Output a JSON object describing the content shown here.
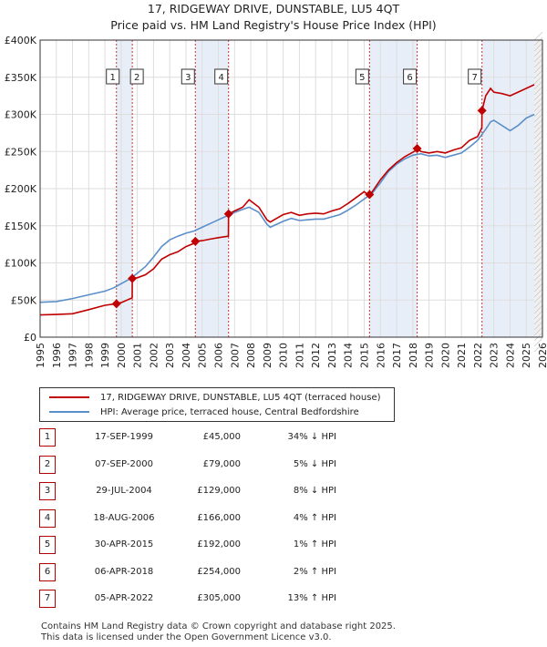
{
  "title": "17, RIDGEWAY DRIVE, DUNSTABLE, LU5 4QT",
  "subtitle": "Price paid vs. HM Land Registry's House Price Index (HPI)",
  "legend": {
    "property": "17, RIDGEWAY DRIVE, DUNSTABLE, LU5 4QT (terraced house)",
    "hpi": "HPI: Average price, terraced house, Central Bedfordshire"
  },
  "colors": {
    "property": "#c00000",
    "hpi": "#5b8fc9",
    "shade": "#e8eef8",
    "grid": "#dddddd",
    "marker_border": "#b00000"
  },
  "footer": {
    "line1": "Contains HM Land Registry data © Crown copyright and database right 2025.",
    "line2": "This data is licensed under the Open Government Licence v3.0."
  },
  "sales": [
    {
      "num": "1",
      "date": "17-SEP-1999",
      "price": "£45,000",
      "hpi": "34% ↓ HPI"
    },
    {
      "num": "2",
      "date": "07-SEP-2000",
      "price": "£79,000",
      "hpi": "5% ↓ HPI"
    },
    {
      "num": "3",
      "date": "29-JUL-2004",
      "price": "£129,000",
      "hpi": "8% ↓ HPI"
    },
    {
      "num": "4",
      "date": "18-AUG-2006",
      "price": "£166,000",
      "hpi": "4% ↑ HPI"
    },
    {
      "num": "5",
      "date": "30-APR-2015",
      "price": "£192,000",
      "hpi": "1% ↑ HPI"
    },
    {
      "num": "6",
      "date": "06-APR-2018",
      "price": "£254,000",
      "hpi": "2% ↑ HPI"
    },
    {
      "num": "7",
      "date": "05-APR-2022",
      "price": "£305,000",
      "hpi": "13% ↑ HPI"
    }
  ],
  "chart_data": {
    "type": "line",
    "title": "17, RIDGEWAY DRIVE, DUNSTABLE, LU5 4QT",
    "subtitle": "Price paid vs. HM Land Registry's House Price Index (HPI)",
    "xlim": [
      1995,
      2026
    ],
    "ylim": [
      0,
      400000
    ],
    "x_ticks": [
      1995,
      1996,
      1997,
      1998,
      1999,
      2000,
      2001,
      2002,
      2003,
      2004,
      2005,
      2006,
      2007,
      2008,
      2009,
      2010,
      2011,
      2012,
      2013,
      2014,
      2015,
      2016,
      2017,
      2018,
      2019,
      2020,
      2021,
      2022,
      2023,
      2024,
      2025,
      2026
    ],
    "y_ticks": [
      {
        "value": 0,
        "label": "£0"
      },
      {
        "value": 50000,
        "label": "£50K"
      },
      {
        "value": 100000,
        "label": "£100K"
      },
      {
        "value": 150000,
        "label": "£150K"
      },
      {
        "value": 200000,
        "label": "£200K"
      },
      {
        "value": 250000,
        "label": "£250K"
      },
      {
        "value": 300000,
        "label": "£300K"
      },
      {
        "value": 350000,
        "label": "£350K"
      },
      {
        "value": 400000,
        "label": "£400K"
      }
    ],
    "grid": true,
    "legend_position": "bottom-left",
    "shaded_periods": [
      [
        1999.71,
        2000.69
      ],
      [
        2004.58,
        2006.63
      ],
      [
        2015.33,
        2018.27
      ],
      [
        2022.27,
        2025.5
      ]
    ],
    "series": [
      {
        "name": "17, RIDGEWAY DRIVE, DUNSTABLE, LU5 4QT (terraced house)",
        "x": [
          1995.0,
          1996.0,
          1997.0,
          1998.0,
          1999.0,
          1999.71,
          1999.72,
          2000.0,
          2000.68,
          2000.69,
          2001.0,
          2001.5,
          2002.0,
          2002.5,
          2003.0,
          2003.5,
          2004.0,
          2004.57,
          2004.58,
          2005.0,
          2005.5,
          2006.0,
          2006.62,
          2006.63,
          2007.0,
          2007.5,
          2007.9,
          2008.5,
          2009.0,
          2009.2,
          2009.6,
          2010.0,
          2010.5,
          2011.0,
          2011.5,
          2012.0,
          2012.5,
          2013.0,
          2013.5,
          2014.0,
          2014.5,
          2015.0,
          2015.32,
          2015.33,
          2015.5,
          2016.0,
          2016.5,
          2017.0,
          2017.5,
          2018.0,
          2018.26,
          2018.27,
          2018.5,
          2019.0,
          2019.5,
          2020.0,
          2020.5,
          2021.0,
          2021.5,
          2022.0,
          2022.26,
          2022.27,
          2022.5,
          2022.8,
          2023.0,
          2023.5,
          2024.0,
          2024.5,
          2025.0,
          2025.5
        ],
        "y": [
          30000,
          30500,
          31500,
          37000,
          43000,
          45000,
          45500,
          46500,
          53000,
          79000,
          80000,
          84000,
          92000,
          105000,
          111000,
          115000,
          122000,
          127000,
          129000,
          130000,
          132000,
          134000,
          136000,
          166000,
          170000,
          175000,
          185000,
          175000,
          158000,
          155000,
          160000,
          165000,
          168000,
          164000,
          166000,
          167000,
          166000,
          170000,
          173000,
          180000,
          188000,
          196000,
          190000,
          192000,
          196000,
          212000,
          225000,
          235000,
          243000,
          249000,
          252000,
          254000,
          250000,
          248000,
          250000,
          248000,
          252000,
          255000,
          265000,
          270000,
          282000,
          305000,
          325000,
          335000,
          330000,
          328000,
          325000,
          330000,
          335000,
          340000
        ]
      },
      {
        "name": "HPI: Average price, terraced house, Central Bedfordshire",
        "x": [
          1995.0,
          1996.0,
          1997.0,
          1998.0,
          1999.0,
          1999.5,
          2000.0,
          2000.5,
          2001.0,
          2001.5,
          2002.0,
          2002.5,
          2003.0,
          2003.5,
          2004.0,
          2004.5,
          2005.0,
          2005.5,
          2006.0,
          2006.5,
          2007.0,
          2007.5,
          2007.9,
          2008.5,
          2009.0,
          2009.2,
          2009.6,
          2010.0,
          2010.5,
          2011.0,
          2011.5,
          2012.0,
          2012.5,
          2013.0,
          2013.5,
          2014.0,
          2014.5,
          2015.0,
          2015.5,
          2016.0,
          2016.5,
          2017.0,
          2017.5,
          2018.0,
          2018.5,
          2019.0,
          2019.5,
          2020.0,
          2020.5,
          2021.0,
          2021.5,
          2022.0,
          2022.5,
          2022.8,
          2023.0,
          2023.5,
          2024.0,
          2024.5,
          2025.0,
          2025.5
        ],
        "y": [
          47000,
          48000,
          52000,
          57000,
          62000,
          66000,
          72000,
          78000,
          86000,
          95000,
          108000,
          122000,
          131000,
          136000,
          140000,
          143000,
          148000,
          153000,
          158000,
          163000,
          168000,
          172000,
          175000,
          168000,
          152000,
          148000,
          152000,
          156000,
          160000,
          157000,
          158000,
          159000,
          159000,
          162000,
          165000,
          171000,
          178000,
          186000,
          194000,
          208000,
          223000,
          233000,
          240000,
          245000,
          247000,
          244000,
          245000,
          242000,
          245000,
          248000,
          256000,
          265000,
          280000,
          290000,
          292000,
          285000,
          278000,
          285000,
          295000,
          300000
        ]
      }
    ],
    "markers": [
      {
        "label": "1",
        "x": 1999.71,
        "y": 45000
      },
      {
        "label": "2",
        "x": 2000.69,
        "y": 79000
      },
      {
        "label": "3",
        "x": 2004.58,
        "y": 129000
      },
      {
        "label": "4",
        "x": 2006.63,
        "y": 166000
      },
      {
        "label": "5",
        "x": 2015.33,
        "y": 192000
      },
      {
        "label": "6",
        "x": 2018.27,
        "y": 254000
      },
      {
        "label": "7",
        "x": 2022.27,
        "y": 305000
      }
    ]
  }
}
